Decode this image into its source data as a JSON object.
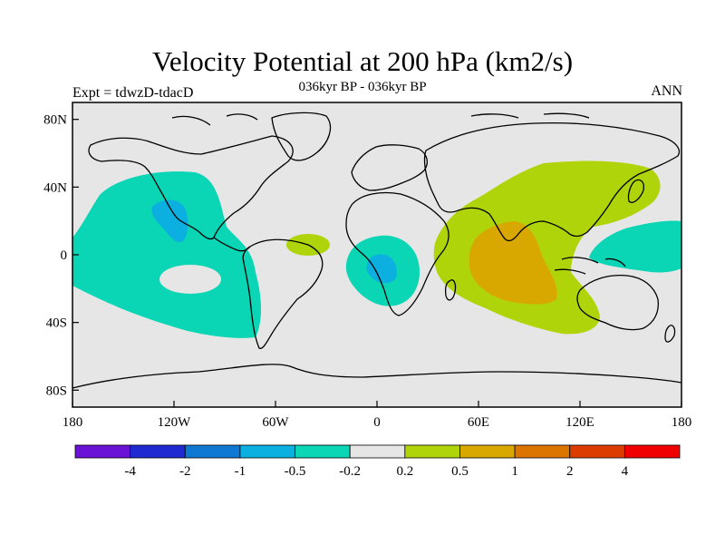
{
  "header": {
    "title": "Velocity Potential at 200 hPa (km2/s)",
    "subtitle": "036kyr BP - 036kyr BP",
    "left_label": "Expt = tdwzD-tdacD",
    "right_label": "ANN"
  },
  "map": {
    "projection": "cylindrical-equidistant",
    "background_color": "#e6e6e6",
    "lat_ticks": [
      "80N",
      "40N",
      "0",
      "40S",
      "80S"
    ],
    "lon_ticks": [
      "180",
      "120W",
      "60W",
      "0",
      "60E",
      "120E",
      "180"
    ]
  },
  "colorbar": {
    "colors": [
      "#6a12d6",
      "#1f2ad1",
      "#0f78d2",
      "#0bb0e0",
      "#0ad5b5",
      "#e6e6e6",
      "#b0d40a",
      "#d8a800",
      "#dc7400",
      "#dc3c00",
      "#f00000"
    ],
    "labels": [
      "-4",
      "-2",
      "-1",
      "-0.5",
      "-0.2",
      "0.2",
      "0.5",
      "1",
      "2",
      "4"
    ]
  }
}
